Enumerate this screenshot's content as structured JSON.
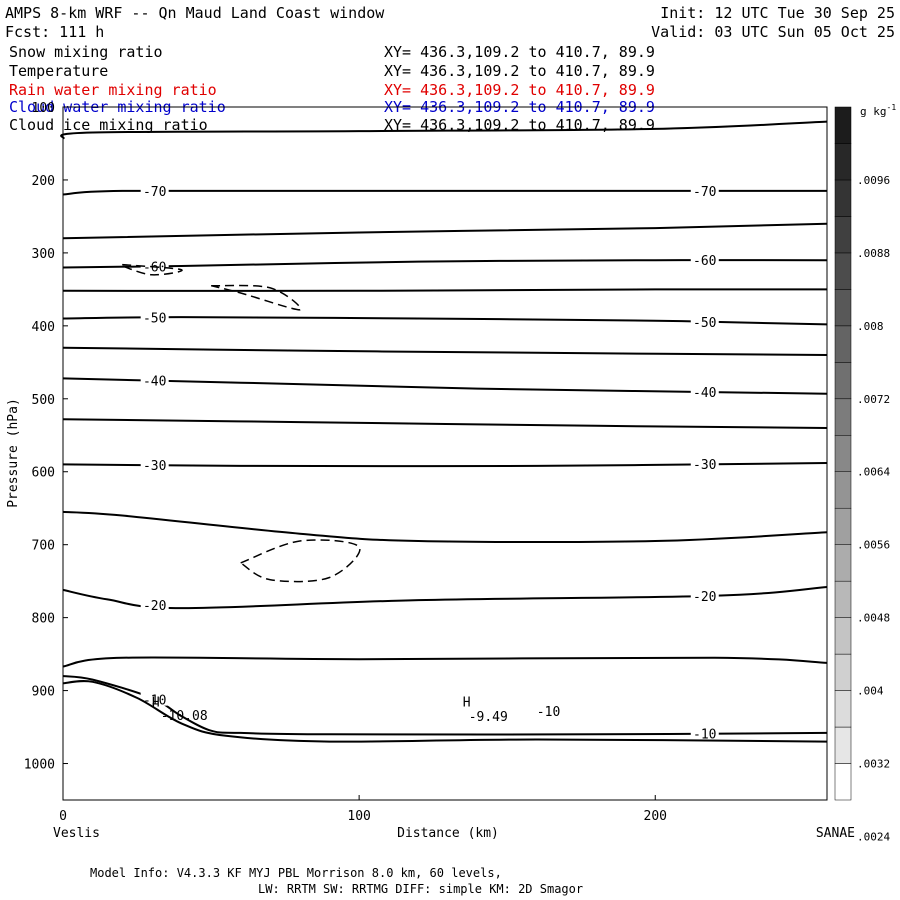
{
  "header": {
    "title": "AMPS 8-km WRF -- Qn Maud Land Coast window",
    "init": "Init: 12 UTC Tue 30 Sep 25",
    "fcst": "Fcst:  111 h",
    "valid": "Valid: 03 UTC Sun 05 Oct 25"
  },
  "fields": [
    {
      "name": "Snow mixing ratio",
      "xy": "XY= 436.3,109.2 to 410.7, 89.9",
      "color": "#000000"
    },
    {
      "name": "Temperature",
      "xy": "XY= 436.3,109.2 to 410.7, 89.9",
      "color": "#000000"
    },
    {
      "name": "Rain water mixing ratio",
      "xy": "XY= 436.3,109.2 to 410.7, 89.9",
      "color": "#e00000"
    },
    {
      "name": "Cloud water mixing ratio",
      "xy": "XY= 436.3,109.2 to 410.7, 89.9",
      "color": "#0000cc"
    },
    {
      "name": "Cloud ice mixing ratio",
      "xy": "XY= 436.3,109.2 to 410.7, 89.9",
      "color": "#000000"
    }
  ],
  "colorbar": {
    "unit_base": "g kg",
    "unit_exp": "-1",
    "labels": [
      ".0096",
      ".0088",
      ".008",
      ".0072",
      ".0064",
      ".0056",
      ".0048",
      ".004",
      ".0032",
      ".0024"
    ],
    "shades": [
      "#ffffff",
      "#e6e6e6",
      "#dcdcdc",
      "#d0d0d0",
      "#c4c4c4",
      "#b8b8b8",
      "#acacac",
      "#a0a0a0",
      "#949494",
      "#888888",
      "#7c7c7c",
      "#707070",
      "#646464",
      "#585858",
      "#4c4c4c",
      "#404040",
      "#343434",
      "#282828",
      "#1c1c1c"
    ]
  },
  "chart_data": {
    "type": "line",
    "subtype": "vertical cross-section contour",
    "xlabel": "Distance (km)",
    "ylabel": "Pressure (hPa)",
    "xlim": [
      0,
      258
    ],
    "ylim": [
      1050,
      100
    ],
    "xticks": [
      0,
      100,
      200
    ],
    "yticks": [
      100,
      200,
      300,
      400,
      500,
      600,
      700,
      800,
      900,
      1000
    ],
    "left_endpoint": "Veslis",
    "right_endpoint": "SANAE",
    "temperature_contours": [
      {
        "points": [
          [
            0,
            143
          ],
          [
            10,
            135
          ],
          [
            100,
            133
          ],
          [
            200,
            130
          ],
          [
            258,
            120
          ]
        ]
      },
      {
        "points": [
          [
            0,
            220
          ],
          [
            20,
            215
          ],
          [
            100,
            215
          ],
          [
            200,
            215
          ],
          [
            258,
            215
          ]
        ],
        "label": "-70"
      },
      {
        "points": [
          [
            0,
            280
          ],
          [
            100,
            272
          ],
          [
            200,
            266
          ],
          [
            258,
            260
          ]
        ]
      },
      {
        "points": [
          [
            0,
            320
          ],
          [
            40,
            318
          ],
          [
            120,
            312
          ],
          [
            200,
            310
          ],
          [
            258,
            310
          ]
        ],
        "label": "-60"
      },
      {
        "points": [
          [
            0,
            352
          ],
          [
            100,
            352
          ],
          [
            200,
            350
          ],
          [
            258,
            350
          ]
        ]
      },
      {
        "points": [
          [
            0,
            390
          ],
          [
            40,
            388
          ],
          [
            120,
            390
          ],
          [
            200,
            393
          ],
          [
            258,
            398
          ]
        ],
        "label": "-50"
      },
      {
        "points": [
          [
            0,
            430
          ],
          [
            80,
            434
          ],
          [
            160,
            437
          ],
          [
            258,
            440
          ]
        ]
      },
      {
        "points": [
          [
            0,
            472
          ],
          [
            60,
            478
          ],
          [
            140,
            486
          ],
          [
            258,
            493
          ]
        ],
        "label": "-40"
      },
      {
        "points": [
          [
            0,
            528
          ],
          [
            80,
            532
          ],
          [
            180,
            537
          ],
          [
            258,
            540
          ]
        ]
      },
      {
        "points": [
          [
            0,
            590
          ],
          [
            60,
            592
          ],
          [
            160,
            592
          ],
          [
            258,
            588
          ]
        ],
        "label": "-30"
      },
      {
        "points": [
          [
            0,
            655
          ],
          [
            20,
            660
          ],
          [
            80,
            685
          ],
          [
            120,
            695
          ],
          [
            200,
            695
          ],
          [
            258,
            683
          ]
        ]
      },
      {
        "points": [
          [
            0,
            762
          ],
          [
            15,
            775
          ],
          [
            40,
            787
          ],
          [
            120,
            776
          ],
          [
            220,
            770
          ],
          [
            258,
            758
          ]
        ],
        "label": "-20"
      },
      {
        "points": [
          [
            0,
            867
          ],
          [
            20,
            855
          ],
          [
            100,
            857
          ],
          [
            220,
            855
          ],
          [
            258,
            862
          ]
        ]
      },
      {
        "points": [
          [
            0,
            880
          ],
          [
            10,
            885
          ],
          [
            30,
            910
          ],
          [
            40,
            935
          ],
          [
            50,
            955
          ],
          [
            60,
            958
          ],
          [
            90,
            960
          ],
          [
            180,
            960
          ],
          [
            258,
            958
          ]
        ],
        "label": "-10"
      },
      {
        "points": [
          [
            0,
            890
          ],
          [
            10,
            888
          ],
          [
            25,
            910
          ],
          [
            40,
            945
          ],
          [
            55,
            962
          ],
          [
            90,
            970
          ],
          [
            160,
            967
          ],
          [
            258,
            970
          ]
        ]
      }
    ],
    "rain_water_contours": [
      {
        "points": [
          [
            20,
            316
          ],
          [
            40,
            323
          ],
          [
            30,
            330
          ],
          [
            20,
            318
          ]
        ],
        "style": "dashed"
      },
      {
        "points": [
          [
            50,
            345
          ],
          [
            70,
            348
          ],
          [
            80,
            378
          ],
          [
            60,
            355
          ],
          [
            50,
            345
          ]
        ],
        "style": "dashed"
      },
      {
        "points": [
          [
            60,
            725
          ],
          [
            80,
            695
          ],
          [
            100,
            703
          ],
          [
            90,
            745
          ],
          [
            70,
            748
          ],
          [
            60,
            725
          ]
        ],
        "style": "dashed"
      }
    ],
    "annotations": [
      {
        "text": "H",
        "x": 30,
        "y": 922
      },
      {
        "text": "-10.08",
        "x": 33,
        "y": 940
      },
      {
        "text": "H",
        "x": 135,
        "y": 922
      },
      {
        "text": "-9.49",
        "x": 137,
        "y": 942
      },
      {
        "text": "-10",
        "x": 160,
        "y": 935
      }
    ]
  },
  "footer": {
    "model_info": "Model Info: V4.3.3   KF      MYJ PBL  Morrison              8.0 km,  60 levels,",
    "physics": "LW: RRTM SW: RRTMG   DIFF: simple KM: 2D Smagor"
  }
}
